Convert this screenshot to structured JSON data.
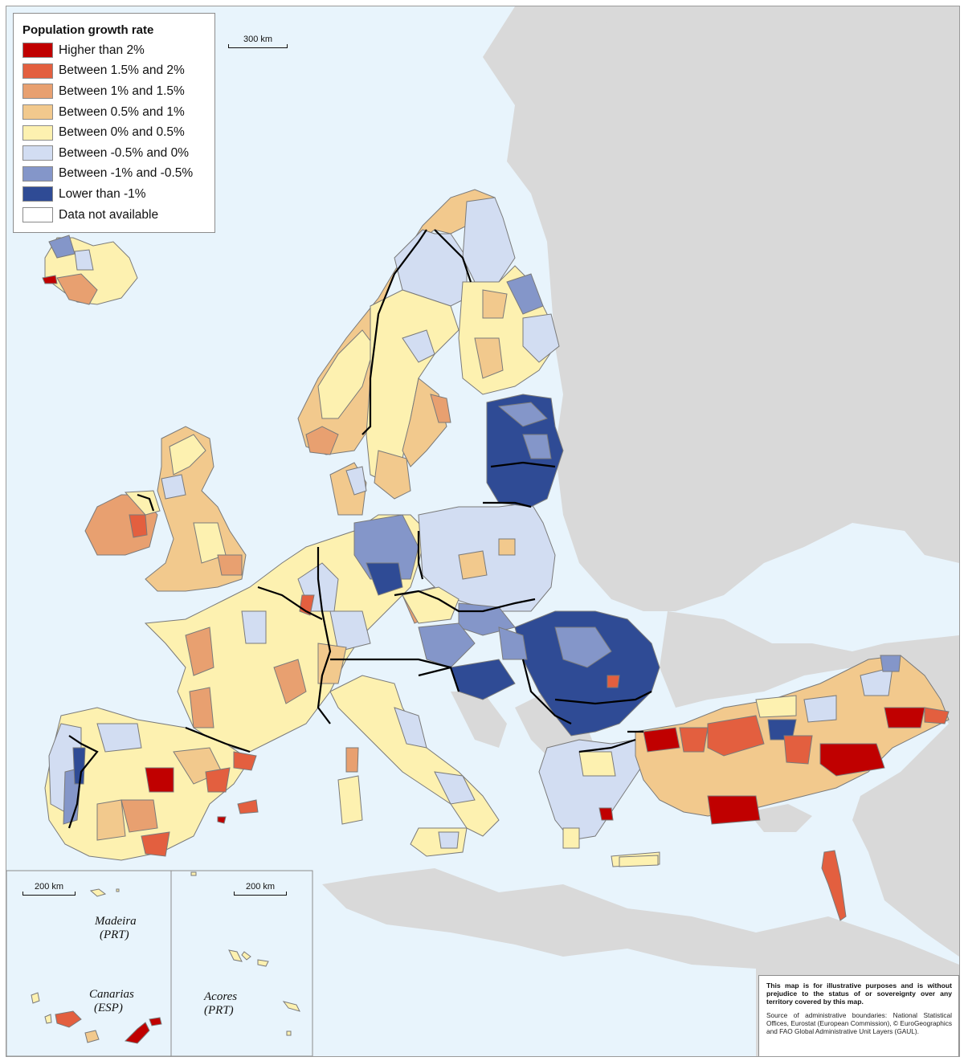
{
  "legend": {
    "title": "Population growth rate",
    "items": [
      {
        "label": "Higher than 2%",
        "color": "#c00000"
      },
      {
        "label": "Between 1.5% and 2%",
        "color": "#e35f3f"
      },
      {
        "label": "Between 1% and 1.5%",
        "color": "#e8a070"
      },
      {
        "label": "Between 0.5% and 1%",
        "color": "#f2c98d"
      },
      {
        "label": "Between 0% and 0.5%",
        "color": "#fdf1b0"
      },
      {
        "label": "Between -0.5% and 0%",
        "color": "#d2ddf2"
      },
      {
        "label": "Between -1% and -0.5%",
        "color": "#8496c9"
      },
      {
        "label": "Lower than -1%",
        "color": "#2f4b95"
      },
      {
        "label": "Data not available",
        "color": "#ffffff"
      }
    ]
  },
  "scales": {
    "main": "300 km",
    "inset_1": "200 km",
    "inset_2": "200 km"
  },
  "insets": {
    "madeira": [
      "Madeira",
      "(PRT)"
    ],
    "canarias": [
      "Canarias",
      "(ESP)"
    ],
    "acores": [
      "Acores",
      "(PRT)"
    ]
  },
  "disclaimer": {
    "notice": "This map is for illustrative purposes and is without prejudice to the status of or sovereignty over any territory covered by this map.",
    "source": "Source of administrative boundaries: National Statistical Offices, Eurostat (European Commission), © EuroGeographics and FAO Global Administrative Unit Layers (GAUL)."
  },
  "colors": {
    "sea": "#e8f4fc",
    "non_covered_land": "#d9d9d9",
    "region_border": "#7a7a7a",
    "country_border": "#000000"
  }
}
